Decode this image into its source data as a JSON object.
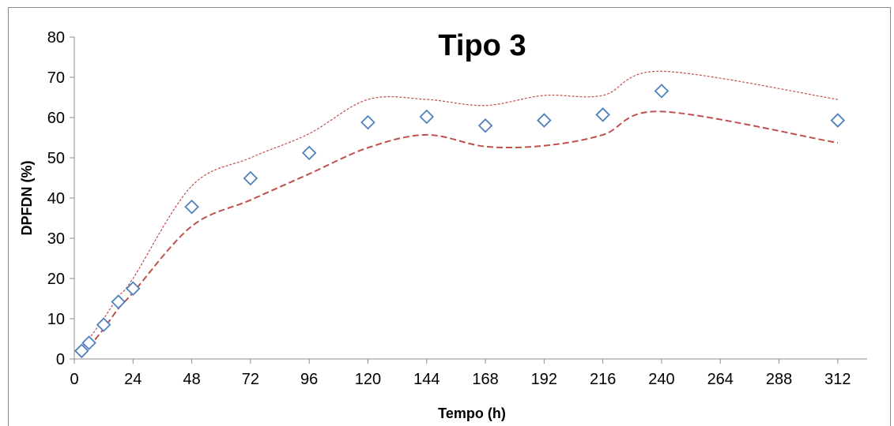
{
  "chart_data": {
    "type": "scatter",
    "title": "Tipo 3",
    "xlabel": "Tempo (h)",
    "ylabel": "DPFDN (%)",
    "xlim": [
      0,
      324
    ],
    "ylim": [
      0,
      80
    ],
    "xticks": [
      0,
      24,
      48,
      72,
      96,
      120,
      144,
      168,
      192,
      216,
      240,
      264,
      288,
      312
    ],
    "yticks": [
      0,
      10,
      20,
      30,
      40,
      50,
      60,
      70,
      80
    ],
    "grid": false,
    "legend": "none",
    "series": [
      {
        "kind": "points",
        "marker": "diamond",
        "color": "#4f81bd",
        "x": [
          3,
          6,
          12,
          18,
          24,
          48,
          72,
          96,
          120,
          144,
          168,
          192,
          216,
          240,
          312
        ],
        "y": [
          2.0,
          4.0,
          8.5,
          14.2,
          17.5,
          37.8,
          44.9,
          51.2,
          58.8,
          60.2,
          58.0,
          59.3,
          60.7,
          66.6,
          59.3
        ]
      },
      {
        "kind": "line",
        "style": "dotted",
        "color": "#c0504d",
        "x": [
          3,
          6,
          12,
          18,
          24,
          48,
          72,
          96,
          120,
          144,
          168,
          192,
          216,
          240,
          312
        ],
        "y": [
          2.5,
          5.0,
          10.0,
          15.5,
          20.0,
          43.0,
          50.0,
          56.0,
          64.5,
          64.5,
          63.0,
          65.5,
          65.5,
          71.5,
          64.5
        ]
      },
      {
        "kind": "line",
        "style": "dashed",
        "color": "#c0504d",
        "x": [
          3,
          6,
          12,
          18,
          24,
          48,
          72,
          96,
          120,
          144,
          168,
          192,
          216,
          240,
          312
        ],
        "y": [
          1.5,
          3.0,
          7.5,
          12.5,
          16.5,
          33.0,
          39.5,
          46.0,
          52.5,
          55.7,
          52.8,
          53.0,
          55.7,
          61.5,
          53.7
        ]
      }
    ]
  }
}
